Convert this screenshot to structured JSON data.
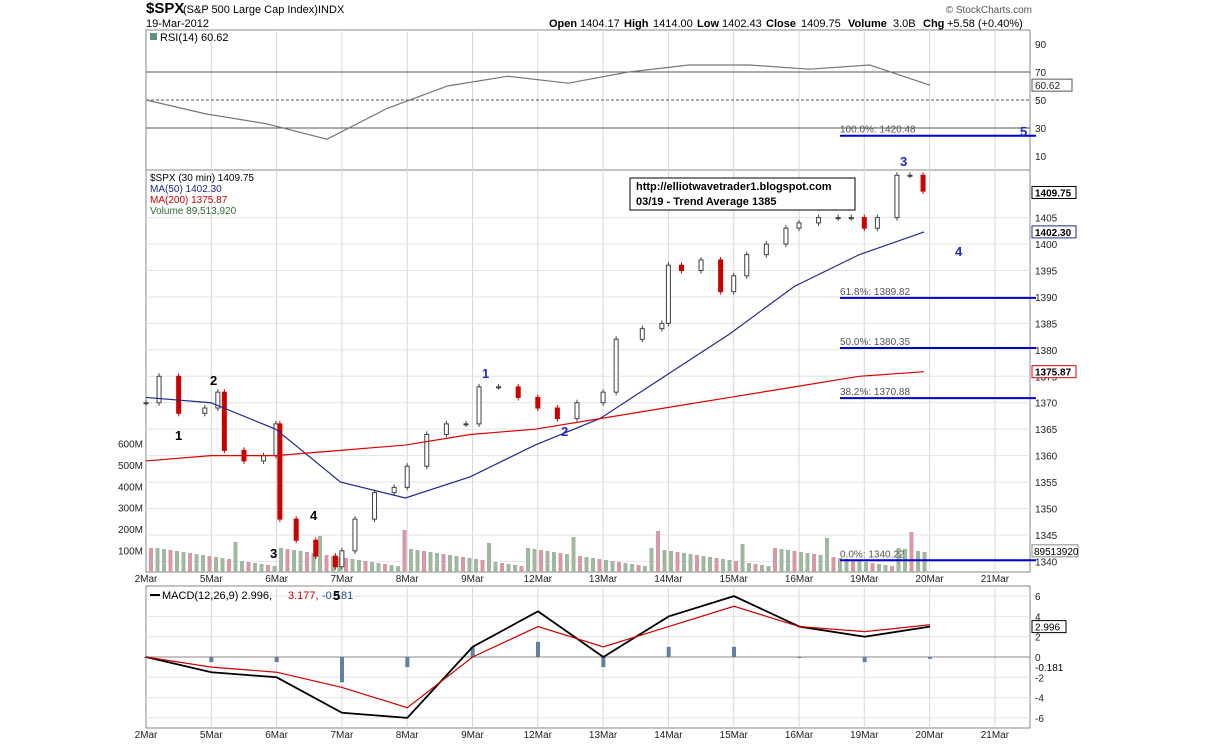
{
  "header": {
    "symbol": "$SPX",
    "name": "(S&P 500 Large Cap Index)",
    "exchange": "INDX",
    "date": "19-Mar-2012",
    "brand": "© StockCharts.com",
    "open_label": "Open",
    "open": "1404.17",
    "high_label": "High",
    "high": "1414.00",
    "low_label": "Low",
    "low": "1402.43",
    "close_label": "Close",
    "close": "1409.75",
    "volume_label": "Volume",
    "volume": "3.0B",
    "chg_label": "Chg",
    "chg": "+5.58 (+0.40%)"
  },
  "rsi_panel": {
    "legend": "RSI(14) 60.62",
    "current_label": "60.62",
    "axis_labels": [
      "90",
      "70",
      "50",
      "30",
      "10"
    ]
  },
  "price_panel": {
    "legend": [
      "$SPX (30 min) 1409.75",
      "MA(50) 1402.30",
      "MA(200) 1375.87",
      "Volume 89,513,920"
    ],
    "axis_labels": [
      "1405",
      "1400",
      "1395",
      "1390",
      "1385",
      "1380",
      "1375",
      "1370",
      "1365",
      "1360",
      "1355",
      "1350",
      "1345",
      "1340"
    ],
    "volume_labels": [
      "600M",
      "500M",
      "400M",
      "300M",
      "200M",
      "100M"
    ],
    "tags": {
      "close": "1409.75",
      "ma50": "1402.30",
      "ma200": "1375.87",
      "volume": "89513920"
    },
    "annotation_box": [
      "http://elliotwavetrader1.blogspot.com",
      "03/19 - Trend Average 1385"
    ],
    "fib_labels": [
      "100.0%: 1420.48",
      "61.8%: 1389.82",
      "50.0%: 1380.35",
      "38.2%: 1370.88",
      "0.0%: 1340.22"
    ],
    "wave_labels": [
      "1",
      "2",
      "3",
      "4",
      "5",
      "1",
      "2",
      "3",
      "4",
      "5"
    ]
  },
  "macd_panel": {
    "legend_a": "MACD(12,26,9) 2.996,",
    "legend_b": "3.177,",
    "legend_c": "-0.181",
    "axis_labels": [
      "6",
      "4",
      "2",
      "0",
      "-2",
      "-4",
      "-6"
    ],
    "tags": {
      "macd": "2.996",
      "hist": "-0.181"
    }
  },
  "x_labels": [
    "2Mar",
    "5Mar",
    "6Mar",
    "7Mar",
    "8Mar",
    "9Mar",
    "12Mar",
    "13Mar",
    "14Mar",
    "15Mar",
    "16Mar",
    "19Mar",
    "20Mar",
    "21Mar"
  ],
  "colors": {
    "up": "#404040",
    "down": "#cc0000",
    "ma50": "#1f2a8a",
    "ma200": "#dd0000",
    "fib": "#0000cc",
    "rsi_fill": "#5f8f7f",
    "macd_hist": "#6080a8",
    "volume_up": "#9fb89f",
    "volume_down": "#d898a8"
  },
  "chart_data": [
    {
      "type": "line",
      "name_ref": "RSI",
      "x": [
        0,
        1,
        2,
        3,
        4,
        5,
        6,
        7,
        8,
        9,
        10,
        11,
        12,
        13
      ],
      "y": [
        50,
        40,
        33,
        22,
        44,
        60,
        67,
        62,
        70,
        75,
        75,
        72,
        75,
        60.62
      ],
      "ylim": [
        0,
        100
      ],
      "reference_lines": [
        70,
        50,
        30
      ]
    },
    {
      "type": "candlestick",
      "x_labels": [
        "2Mar",
        "5Mar",
        "6Mar",
        "7Mar",
        "8Mar",
        "9Mar",
        "12Mar",
        "13Mar",
        "14Mar",
        "15Mar",
        "16Mar",
        "19Mar",
        "20Mar",
        "21Mar"
      ],
      "ylim": [
        1338,
        1414
      ],
      "y_log_scale": false,
      "close_path": [
        [
          0,
          1370
        ],
        [
          0.2,
          1375
        ],
        [
          0.5,
          1368
        ],
        [
          0.9,
          1369
        ],
        [
          1.1,
          1372
        ],
        [
          1.2,
          1361
        ],
        [
          1.5,
          1359
        ],
        [
          1.8,
          1360
        ],
        [
          1.99,
          1366
        ],
        [
          2.05,
          1348
        ],
        [
          2.3,
          1344
        ],
        [
          2.6,
          1341
        ],
        [
          2.9,
          1339
        ],
        [
          3.0,
          1342
        ],
        [
          3.2,
          1348
        ],
        [
          3.5,
          1353
        ],
        [
          3.8,
          1354
        ],
        [
          4.0,
          1358
        ],
        [
          4.3,
          1364
        ],
        [
          4.6,
          1366
        ],
        [
          4.9,
          1366
        ],
        [
          5.1,
          1373
        ],
        [
          5.4,
          1373
        ],
        [
          5.7,
          1371
        ],
        [
          6.0,
          1369
        ],
        [
          6.3,
          1367
        ],
        [
          6.6,
          1370
        ],
        [
          7.0,
          1372
        ],
        [
          7.2,
          1382
        ],
        [
          7.6,
          1384
        ],
        [
          7.9,
          1385
        ],
        [
          8.0,
          1396
        ],
        [
          8.2,
          1395
        ],
        [
          8.5,
          1397
        ],
        [
          8.8,
          1391
        ],
        [
          9.0,
          1394
        ],
        [
          9.2,
          1398
        ],
        [
          9.5,
          1400
        ],
        [
          9.8,
          1403
        ],
        [
          10.0,
          1404
        ],
        [
          10.3,
          1405
        ],
        [
          10.6,
          1405
        ],
        [
          10.8,
          1405
        ],
        [
          11.0,
          1403
        ],
        [
          11.2,
          1405
        ],
        [
          11.5,
          1413
        ],
        [
          11.7,
          1413
        ],
        [
          11.9,
          1410
        ]
      ],
      "ma50": [
        1371,
        1370,
        1365,
        1355,
        1352,
        1356,
        1362,
        1367,
        1375,
        1383,
        1392,
        1398,
        1402.3
      ],
      "ma200": [
        1359,
        1360,
        1360,
        1361,
        1362,
        1364,
        1365,
        1367,
        1369,
        1371,
        1373,
        1375,
        1375.87
      ],
      "fib_levels": [
        {
          "pct": "100.0%",
          "value": 1420.48
        },
        {
          "pct": "61.8%",
          "value": 1389.82
        },
        {
          "pct": "50.0%",
          "value": 1380.35
        },
        {
          "pct": "38.2%",
          "value": 1370.88
        },
        {
          "pct": "0.0%",
          "value": 1340.22
        }
      ],
      "annotations": [
        "http://elliotwavetrader1.blogspot.com",
        "03/19 - Trend Average 1385"
      ],
      "current": {
        "close": 1409.75,
        "ma50": 1402.3,
        "ma200": 1375.87,
        "volume": 89513920
      }
    },
    {
      "type": "line",
      "name_ref": "MACD(12,26,9)",
      "x": [
        0,
        1,
        2,
        3,
        4,
        5,
        6,
        7,
        8,
        9,
        10,
        11,
        12
      ],
      "macd": [
        0,
        -1.5,
        -2,
        -5.5,
        -6,
        1,
        4.5,
        0,
        4,
        6,
        3,
        2,
        2.996
      ],
      "signal": [
        0,
        -1,
        -1.5,
        -3,
        -5,
        0,
        3,
        1,
        3,
        5,
        3,
        2.5,
        3.177
      ],
      "histogram": [
        0,
        -0.5,
        -0.5,
        -2.5,
        -1,
        1,
        1.5,
        -1,
        1,
        1,
        0,
        -0.5,
        -0.181
      ],
      "ylim": [
        -7,
        7
      ]
    }
  ]
}
